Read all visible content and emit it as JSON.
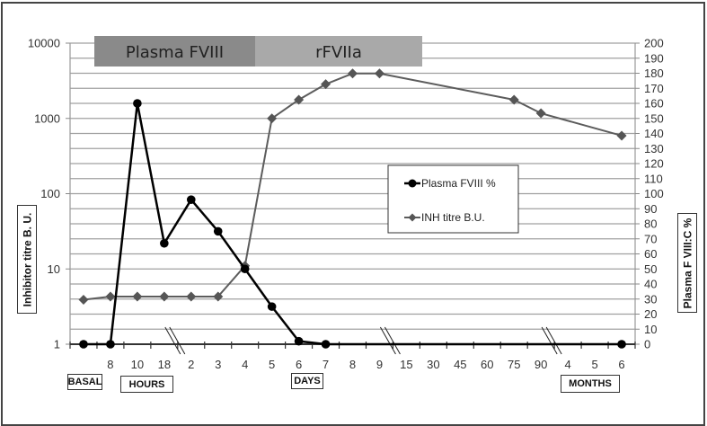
{
  "chart_data": {
    "type": "line",
    "title": "",
    "bands": [
      {
        "label": "Plasma FVIII",
        "from_index": 0,
        "to_index": 6,
        "color": "#8a8a8a"
      },
      {
        "label": "rFVIIa",
        "from_index": 6,
        "to_index": 12,
        "color": "#a9a9a9"
      }
    ],
    "categories": [
      "",
      "8",
      "10",
      "18",
      "2",
      "3",
      "4",
      "5",
      "6",
      "7",
      "8",
      "9",
      "15",
      "30",
      "45",
      "60",
      "75",
      "90",
      "4",
      "5",
      "6"
    ],
    "category_groups": [
      {
        "label": "BASAL",
        "indices": [
          0
        ]
      },
      {
        "label": "HOURS",
        "indices": [
          1,
          2,
          3
        ]
      },
      {
        "label": "DAYS",
        "indices": [
          4,
          5,
          6,
          7,
          8,
          9,
          10,
          11,
          12,
          13,
          14,
          15,
          16,
          17
        ]
      },
      {
        "label": "MONTHS",
        "indices": [
          18,
          19,
          20
        ]
      }
    ],
    "axis_breaks_after_index": [
      3,
      11,
      17
    ],
    "series": [
      {
        "name": "Plasma  FVIII %",
        "axis": "right",
        "color": "#000000",
        "marker": "circle",
        "values": [
          0,
          0,
          160,
          67,
          96,
          75,
          50,
          25,
          2,
          0,
          null,
          null,
          null,
          null,
          null,
          null,
          null,
          null,
          null,
          null,
          0
        ]
      },
      {
        "name": "INH titre  B.U.",
        "axis": "left",
        "color": "#5c5c5c",
        "marker": "diamond",
        "values": [
          3.9,
          4.3,
          4.3,
          4.3,
          4.3,
          4.3,
          11,
          1000,
          1770,
          2850,
          3950,
          3950,
          null,
          null,
          null,
          null,
          1770,
          1170,
          null,
          null,
          590
        ]
      }
    ],
    "y_left": {
      "label": "Inhibitor  titre  B. U.",
      "scale": "log",
      "range": [
        1,
        10000
      ],
      "ticks": [
        "1",
        "10",
        "100",
        "1000",
        "10000"
      ]
    },
    "y_right": {
      "label": "Plasma F VIII:C %",
      "scale": "linear",
      "range": [
        0,
        200
      ],
      "step": 10,
      "ticks": [
        "0",
        "10",
        "20",
        "30",
        "40",
        "50",
        "60",
        "70",
        "80",
        "90",
        "100",
        "110",
        "120",
        "130",
        "140",
        "150",
        "160",
        "170",
        "180",
        "190",
        "200"
      ]
    },
    "xlabel": "",
    "grid": true,
    "legend_position": "inside-center-right"
  },
  "labels": {
    "y_left_title": "Inhibitor  titre  B. U.",
    "y_right_title": "Plasma F VIII:C %",
    "basal": "BASAL",
    "hours": "HOURS",
    "days": "DAYS",
    "months": "MONTHS",
    "legend_plasma": "Plasma  FVIII %",
    "legend_inh": "INH titre  B.U."
  }
}
